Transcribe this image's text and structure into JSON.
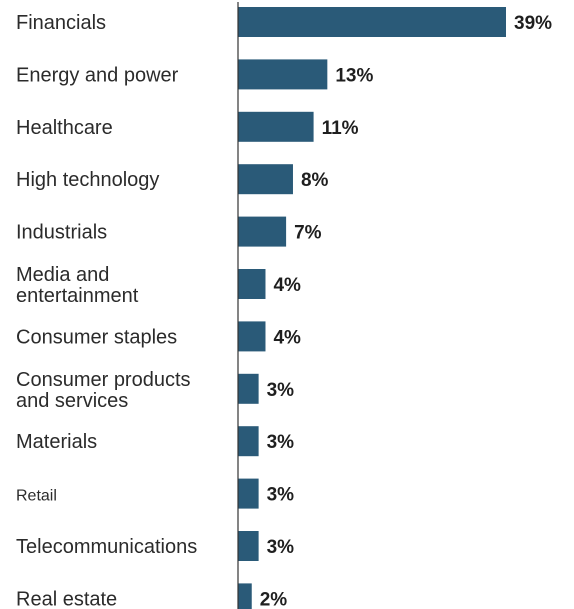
{
  "chart_data": {
    "type": "bar",
    "orientation": "horizontal",
    "categories": [
      [
        "Financials"
      ],
      [
        "Energy and power"
      ],
      [
        "Healthcare"
      ],
      [
        "High technology"
      ],
      [
        "Industrials"
      ],
      [
        "Media and",
        "entertainment"
      ],
      [
        "Consumer staples"
      ],
      [
        "Consumer products",
        "and services"
      ],
      [
        "Materials"
      ],
      [
        "Retail"
      ],
      [
        "Telecommunications"
      ],
      [
        "Real estate"
      ]
    ],
    "values": [
      39,
      13,
      11,
      8,
      7,
      4,
      4,
      3,
      3,
      3,
      3,
      2
    ],
    "value_labels": [
      "39%",
      "13%",
      "11%",
      "8%",
      "7%",
      "4%",
      "4%",
      "3%",
      "3%",
      "3%",
      "3%",
      "2%"
    ],
    "xlim": [
      0,
      39
    ],
    "bar_color": "#2a5a78",
    "axis_color": "#333333",
    "grid": false,
    "legend": "none"
  }
}
